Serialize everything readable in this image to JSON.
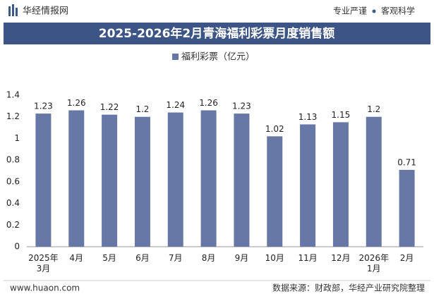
{
  "header": {
    "logo": "华经情报网",
    "tagline_left": "专业严谨",
    "tagline_right": "客观科学"
  },
  "chart_data": {
    "type": "bar",
    "title": "2025-2026年2月青海福利彩票月度销售额",
    "categories": [
      "2025年\n3月",
      "4月",
      "5月",
      "6月",
      "7月",
      "8月",
      "9月",
      "10月",
      "11月",
      "12月",
      "2026年\n1月",
      "2月"
    ],
    "series": [
      {
        "name": "福利彩票（亿元）",
        "color": "#6878a6",
        "values": [
          1.23,
          1.26,
          1.22,
          1.2,
          1.24,
          1.26,
          1.23,
          1.02,
          1.13,
          1.15,
          1.2,
          0.71
        ]
      }
    ],
    "ylim": [
      0,
      1.4
    ],
    "yticks": [
      0,
      0.2,
      0.4,
      0.6,
      0.8,
      1,
      1.2,
      1.4
    ],
    "grid": false,
    "legend": "top"
  },
  "footer": {
    "website": "www.huaon.com",
    "source": "数据来源：财政部，华经产业研究院整理"
  }
}
